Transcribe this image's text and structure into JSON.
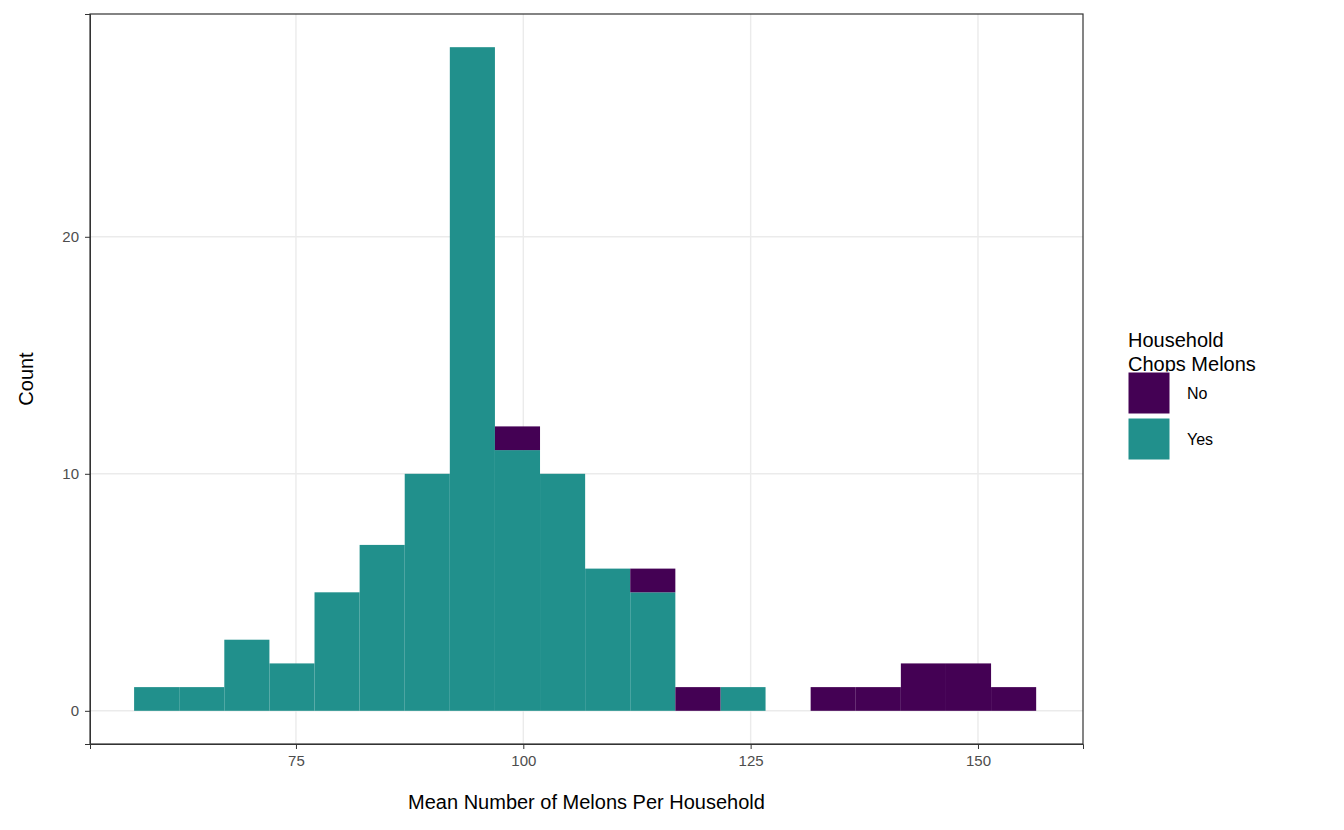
{
  "chart_data": {
    "type": "histogram",
    "x_label": "Mean Number of Melons Per Household",
    "y_label": "Count",
    "legend_title": "Household\nChops Melons",
    "bins": [
      57.2,
      62.16,
      67.12,
      72.08,
      77.04,
      82.0,
      86.96,
      91.92,
      96.88,
      101.84,
      106.8,
      111.76,
      116.72,
      121.68,
      126.64,
      131.6,
      136.56,
      141.52,
      146.48,
      151.44,
      156.4
    ],
    "series": [
      {
        "name": "No",
        "color": "#440154",
        "values": [
          0,
          0,
          0,
          0,
          0,
          0,
          0,
          0,
          1,
          0,
          0,
          1,
          1,
          0,
          0,
          1,
          1,
          2,
          2,
          1
        ]
      },
      {
        "name": "Yes",
        "color": "#21908C",
        "values": [
          1,
          1,
          3,
          2,
          5,
          7,
          10,
          28,
          11,
          10,
          6,
          5,
          0,
          1,
          0,
          0,
          0,
          0,
          0,
          0
        ]
      }
    ],
    "stacked": true,
    "xlim": [
      52.35,
      161.55
    ],
    "ylim": [
      -1.4,
      29.4
    ],
    "xticks": [
      75,
      100,
      125,
      150
    ],
    "yticks": [
      0,
      10,
      20
    ],
    "grid": true,
    "legend": "right"
  }
}
